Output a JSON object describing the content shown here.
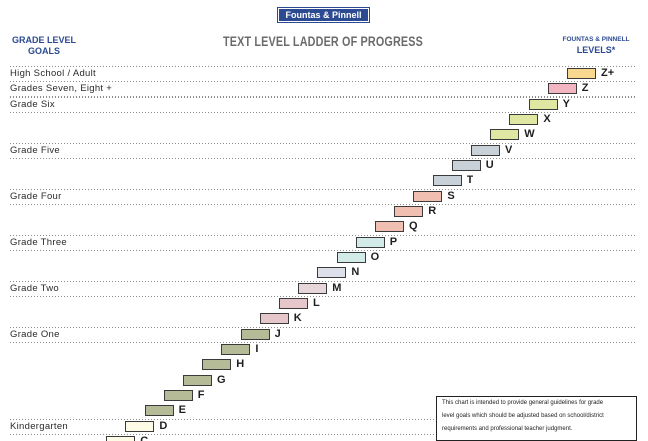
{
  "badge": {
    "label": "Fountas & Pinnell"
  },
  "header": {
    "left": {
      "line1": "GRADE LEVEL",
      "line2": "GOALS"
    },
    "title": "TEXT LEVEL LADDER OF PROGRESS",
    "right": {
      "line1": "FOUNTAS & PINNELL",
      "line2": "LEVELS*"
    }
  },
  "ladder": {
    "levels": [
      {
        "letter": "Z+",
        "color": "#f8d88e",
        "grade_goal": "High School / Adult"
      },
      {
        "letter": "Z",
        "color": "#f3b5c1",
        "grade_goal": "Grades Seven, Eight +"
      },
      {
        "letter": "Y",
        "color": "#dfe7a2",
        "grade_goal": "Grade Six"
      },
      {
        "letter": "X",
        "color": "#dfe7a2"
      },
      {
        "letter": "W",
        "color": "#dfe7a2"
      },
      {
        "letter": "V",
        "color": "#c8d0d8",
        "grade_goal": "Grade Five"
      },
      {
        "letter": "U",
        "color": "#c8d0d8"
      },
      {
        "letter": "T",
        "color": "#c8d0d8"
      },
      {
        "letter": "S",
        "color": "#f1bfb2",
        "grade_goal": "Grade Four"
      },
      {
        "letter": "R",
        "color": "#f1bfb2"
      },
      {
        "letter": "Q",
        "color": "#f1bfb2"
      },
      {
        "letter": "P",
        "color": "#d2eae8",
        "grade_goal": "Grade Three"
      },
      {
        "letter": "O",
        "color": "#d2eae8"
      },
      {
        "letter": "N",
        "color": "#dde0ea"
      },
      {
        "letter": "M",
        "color": "#e6d6da",
        "grade_goal": "Grade Two"
      },
      {
        "letter": "L",
        "color": "#e5c6ca"
      },
      {
        "letter": "K",
        "color": "#e5c6ca"
      },
      {
        "letter": "J",
        "color": "#b5bb96",
        "grade_goal": "Grade One"
      },
      {
        "letter": "I",
        "color": "#b5bb96"
      },
      {
        "letter": "H",
        "color": "#b5bb96"
      },
      {
        "letter": "G",
        "color": "#b5bb96"
      },
      {
        "letter": "F",
        "color": "#b5bb96"
      },
      {
        "letter": "E",
        "color": "#b5bb96"
      },
      {
        "letter": "D",
        "color": "#fdfbe6",
        "grade_goal": "Kindergarten"
      },
      {
        "letter": "C",
        "color": "#fdfbe6"
      }
    ]
  },
  "note": {
    "lines": [
      "This chart is intended to provide general guidelines for grade",
      "level goals which should be adjusted based on school/district",
      "requirements and professional teacher judgment."
    ]
  },
  "colors": {
    "brand_blue": "#2b4a92",
    "title_grey": "#6b6b6b",
    "dotted_rule": "#8c8c8c"
  }
}
